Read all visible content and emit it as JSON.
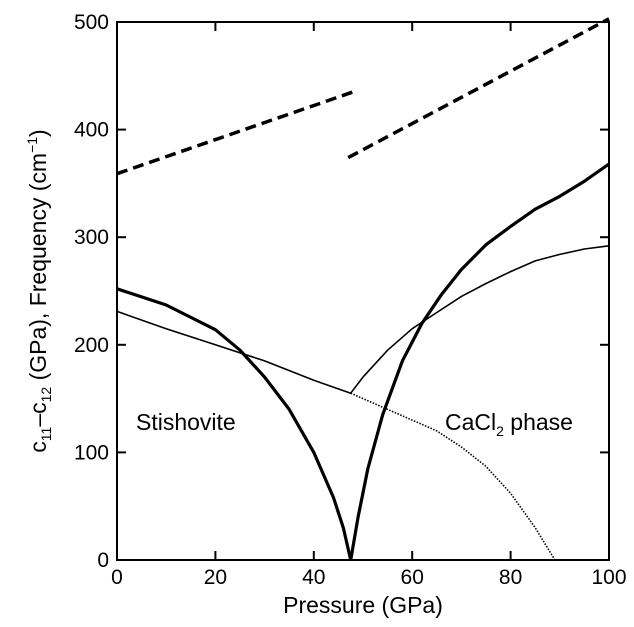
{
  "chart_data": {
    "type": "line",
    "xlabel": "Pressure (GPa)",
    "ylabel": {
      "parts": [
        "c",
        "11",
        "–c",
        "12",
        " (GPa), Frequency (cm",
        "−1",
        ")"
      ]
    },
    "xlim": [
      0,
      100
    ],
    "ylim": [
      0,
      500
    ],
    "x_ticks": [
      0,
      20,
      40,
      60,
      80,
      100
    ],
    "y_ticks": [
      0,
      100,
      200,
      300,
      400,
      500
    ],
    "grid": false,
    "legend": "none",
    "annotations": {
      "left": "Stishovite",
      "right": {
        "parts": [
          "CaCl",
          "2",
          " phase"
        ]
      }
    },
    "series": [
      {
        "style": "dashed-thick",
        "points": [
          [
            0,
            359
          ],
          [
            48,
            435
          ]
        ]
      },
      {
        "style": "dashed-thick",
        "points": [
          [
            47,
            374
          ],
          [
            100,
            503
          ]
        ]
      },
      {
        "style": "solid-thick",
        "points": [
          [
            0,
            252
          ],
          [
            10,
            237
          ],
          [
            20,
            214
          ],
          [
            25,
            195
          ],
          [
            30,
            170
          ],
          [
            35,
            140
          ],
          [
            40,
            100
          ],
          [
            44,
            58
          ],
          [
            46,
            30
          ],
          [
            47.5,
            0
          ]
        ]
      },
      {
        "style": "solid-thick",
        "points": [
          [
            47.5,
            0
          ],
          [
            49,
            40
          ],
          [
            51,
            85
          ],
          [
            54,
            135
          ],
          [
            58,
            185
          ],
          [
            62,
            220
          ],
          [
            66,
            247
          ],
          [
            70,
            270
          ],
          [
            75,
            293
          ],
          [
            80,
            310
          ],
          [
            85,
            326
          ],
          [
            90,
            338
          ],
          [
            95,
            352
          ],
          [
            100,
            368
          ]
        ]
      },
      {
        "style": "solid-thin",
        "points": [
          [
            0,
            231
          ],
          [
            10,
            215
          ],
          [
            20,
            200
          ],
          [
            30,
            185
          ],
          [
            40,
            167
          ],
          [
            47.5,
            155
          ]
        ]
      },
      {
        "style": "solid-thin",
        "points": [
          [
            47.5,
            155
          ],
          [
            50,
            170
          ],
          [
            55,
            195
          ],
          [
            60,
            215
          ],
          [
            65,
            230
          ],
          [
            70,
            245
          ],
          [
            75,
            257
          ],
          [
            80,
            268
          ],
          [
            85,
            278
          ],
          [
            90,
            284
          ],
          [
            95,
            289
          ],
          [
            100,
            292
          ]
        ]
      },
      {
        "style": "dotted-thin",
        "points": [
          [
            47.5,
            155
          ],
          [
            55,
            140
          ],
          [
            60,
            130
          ],
          [
            65,
            120
          ],
          [
            70,
            105
          ],
          [
            75,
            87
          ],
          [
            80,
            62
          ],
          [
            85,
            30
          ],
          [
            89,
            0
          ]
        ]
      }
    ]
  }
}
